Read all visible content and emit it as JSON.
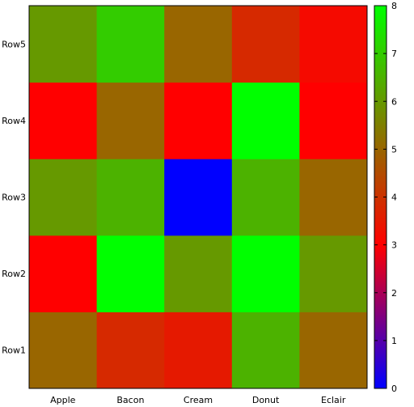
{
  "chart_data": {
    "type": "heatmap",
    "x_categories": [
      "Apple",
      "Bacon",
      "Cream",
      "Donut",
      "Eclair"
    ],
    "y_categories": [
      "Row1",
      "Row2",
      "Row3",
      "Row4",
      "Row5"
    ],
    "values": [
      [
        5.0,
        3.8,
        3.5,
        6.5,
        5.0
      ],
      [
        3.0,
        8.0,
        6.0,
        8.0,
        6.0
      ],
      [
        6.0,
        6.5,
        0.0,
        6.5,
        5.0
      ],
      [
        3.0,
        5.0,
        3.0,
        8.0,
        3.0
      ],
      [
        6.0,
        7.0,
        5.0,
        3.8,
        3.2
      ]
    ],
    "colorbar": {
      "range": [
        0,
        8
      ],
      "ticks": [
        "0",
        "1",
        "2",
        "3",
        "4",
        "5",
        "6",
        "7",
        "8"
      ],
      "stops": [
        {
          "value": 0,
          "color": "#0000ff"
        },
        {
          "value": 3,
          "color": "#ff0000"
        },
        {
          "value": 5.5,
          "color": "#7f7f00"
        },
        {
          "value": 8,
          "color": "#00ff00"
        }
      ]
    },
    "grid": false
  }
}
